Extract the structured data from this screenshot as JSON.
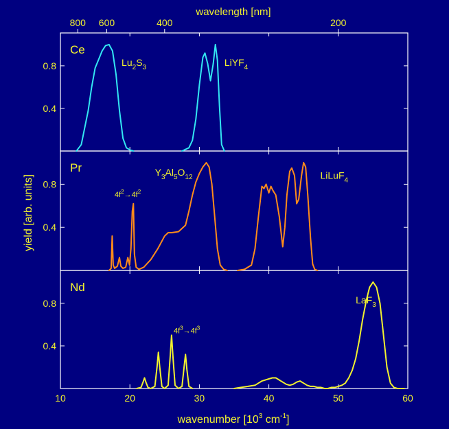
{
  "chart_data": {
    "type": "line",
    "xlabel": "wavenumber [10³ cm⁻¹]",
    "xlabel_parts": {
      "base": "wavenumber [10",
      "sup1": "3",
      "mid": " cm",
      "sup2": "-1",
      "end": "]"
    },
    "ylabel": "yield [arb. units]",
    "top_axis_label": "wavelength [nm]",
    "xlim": [
      10,
      60
    ],
    "xticks": [
      10,
      20,
      30,
      40,
      50,
      60
    ],
    "top_ticks_nm": [
      800,
      600,
      400,
      200
    ],
    "ylim": [
      0,
      1.0
    ],
    "yticks": [
      0.4,
      0.8
    ],
    "grid": false,
    "panels": [
      {
        "id": "ce",
        "label": "Ce",
        "color": "#33e6f2",
        "annotations": [
          {
            "parts": [
              [
                "Lu",
                "n"
              ],
              [
                "2",
                "sub"
              ],
              [
                "S",
                "n"
              ],
              [
                "3",
                "sub"
              ]
            ],
            "at": [
              18.8,
              0.8
            ]
          },
          {
            "parts": [
              [
                "LiYF",
                "n"
              ],
              [
                "4",
                "sub"
              ]
            ],
            "at": [
              33.6,
              0.8
            ]
          }
        ],
        "series": [
          {
            "x": [
              12.3,
              13.0,
              14.0,
              14.5,
              15.0,
              15.5,
              16.0,
              16.5,
              17.0,
              17.5,
              18.0,
              18.5,
              19.0,
              19.5,
              20.0,
              20.5
            ],
            "y": [
              0.0,
              0.06,
              0.38,
              0.6,
              0.78,
              0.86,
              0.94,
              0.99,
              1.0,
              0.94,
              0.72,
              0.38,
              0.12,
              0.03,
              0.01,
              0.0
            ]
          },
          {
            "x": [
              27.5,
              28.5,
              29.0,
              29.5,
              30.0,
              30.5,
              30.8,
              31.2,
              31.6,
              32.0,
              32.3,
              32.6,
              32.9,
              33.2,
              33.6
            ],
            "y": [
              0.0,
              0.03,
              0.1,
              0.3,
              0.62,
              0.88,
              0.92,
              0.82,
              0.66,
              0.82,
              1.0,
              0.85,
              0.42,
              0.06,
              0.0
            ]
          }
        ]
      },
      {
        "id": "pr",
        "label": "Pr",
        "color": "#ff8c1a",
        "annotations": [
          {
            "parts": [
              [
                "4f",
                "n"
              ],
              [
                "2",
                "sup"
              ],
              [
                "→4f",
                "n"
              ],
              [
                "2",
                "sup"
              ]
            ],
            "at": [
              17.8,
              0.68
            ]
          },
          {
            "parts": [
              [
                "Y",
                "n"
              ],
              [
                "3",
                "sub"
              ],
              [
                "Al",
                "n"
              ],
              [
                "5",
                "sub"
              ],
              [
                "O",
                "n"
              ],
              [
                "12",
                "sub"
              ]
            ],
            "at": [
              23.6,
              0.88
            ]
          },
          {
            "parts": [
              [
                "LiLuF",
                "n"
              ],
              [
                "4",
                "sub"
              ]
            ],
            "at": [
              47.4,
              0.85
            ]
          }
        ],
        "series": [
          {
            "x": [
              17.0,
              17.3,
              17.45,
              17.6,
              17.8,
              18.2,
              18.5,
              18.7,
              19.0,
              19.4,
              19.7,
              19.95,
              20.15,
              20.35,
              20.5,
              20.65,
              20.9,
              21.3,
              22.0,
              23.0,
              24.0,
              25.0,
              25.5,
              26.0,
              27.0,
              28.0,
              28.5,
              29.0,
              29.5,
              30.0,
              30.5,
              31.0,
              31.4,
              31.8,
              32.2,
              32.6,
              33.0,
              33.5,
              34.0
            ],
            "y": [
              0.0,
              0.02,
              0.32,
              0.05,
              0.02,
              0.04,
              0.12,
              0.04,
              0.02,
              0.03,
              0.12,
              0.05,
              0.2,
              0.55,
              0.62,
              0.15,
              0.03,
              0.01,
              0.03,
              0.1,
              0.2,
              0.32,
              0.35,
              0.35,
              0.36,
              0.42,
              0.55,
              0.7,
              0.82,
              0.9,
              0.96,
              1.0,
              0.96,
              0.8,
              0.5,
              0.2,
              0.05,
              0.01,
              0.0
            ]
          },
          {
            "x": [
              35.5,
              36.5,
              37.5,
              38.0,
              38.5,
              39.0,
              39.3,
              39.6,
              40.0,
              40.3,
              40.6,
              41.0,
              41.5,
              42.0,
              42.3,
              42.6,
              43.0,
              43.3,
              43.7,
              44.0,
              44.3,
              44.7,
              45.0,
              45.3,
              45.6,
              46.0,
              46.3,
              46.6,
              47.0
            ],
            "y": [
              0.0,
              0.01,
              0.05,
              0.2,
              0.5,
              0.78,
              0.76,
              0.8,
              0.72,
              0.78,
              0.74,
              0.7,
              0.5,
              0.22,
              0.4,
              0.7,
              0.92,
              0.95,
              0.88,
              0.62,
              0.66,
              0.88,
              1.0,
              0.96,
              0.7,
              0.3,
              0.06,
              0.01,
              0.0
            ]
          }
        ]
      },
      {
        "id": "nd",
        "label": "Nd",
        "color": "#f2f22e",
        "annotations": [
          {
            "parts": [
              [
                "4f",
                "n"
              ],
              [
                "3",
                "sup"
              ],
              [
                "→4f",
                "n"
              ],
              [
                "3",
                "sup"
              ]
            ],
            "at": [
              26.3,
              0.52
            ]
          },
          {
            "parts": [
              [
                "LaF",
                "n"
              ],
              [
                "3",
                "sub"
              ]
            ],
            "at": [
              52.5,
              0.8
            ]
          }
        ],
        "series": [
          {
            "x": [
              21.0,
              21.6,
              21.9,
              22.1,
              22.3,
              22.6,
              23.0,
              23.6,
              23.9,
              24.1,
              24.3,
              24.6,
              25.0,
              25.5,
              25.8,
              26.0,
              26.2,
              26.5,
              27.0,
              27.5,
              27.8,
              28.0,
              28.2,
              28.5,
              29.0
            ],
            "y": [
              0.0,
              0.01,
              0.06,
              0.1,
              0.06,
              0.01,
              0.0,
              0.02,
              0.2,
              0.34,
              0.2,
              0.02,
              0.0,
              0.03,
              0.3,
              0.5,
              0.3,
              0.03,
              0.0,
              0.02,
              0.2,
              0.32,
              0.18,
              0.02,
              0.0
            ]
          },
          {
            "x": [
              35.0,
              36.0,
              37.0,
              38.0,
              38.5,
              39.0,
              39.5,
              40.0,
              40.5,
              41.0,
              41.5,
              42.0,
              42.5,
              43.0,
              43.5,
              44.0,
              44.5,
              45.0,
              45.5,
              46.0,
              46.5,
              47.0,
              47.5,
              48.0,
              48.5,
              49.0,
              49.5,
              50.0,
              50.5,
              51.0,
              51.5,
              52.0,
              52.5,
              53.0,
              53.5,
              54.0,
              54.5,
              55.0,
              55.5,
              56.0,
              56.5,
              57.0,
              57.5,
              58.0,
              58.5,
              59.0,
              59.5
            ],
            "y": [
              0.0,
              0.01,
              0.02,
              0.03,
              0.05,
              0.07,
              0.08,
              0.09,
              0.1,
              0.1,
              0.08,
              0.06,
              0.04,
              0.03,
              0.04,
              0.06,
              0.07,
              0.05,
              0.03,
              0.02,
              0.02,
              0.01,
              0.01,
              0.0,
              0.0,
              0.01,
              0.01,
              0.02,
              0.03,
              0.05,
              0.1,
              0.17,
              0.28,
              0.45,
              0.65,
              0.82,
              0.95,
              1.0,
              0.95,
              0.8,
              0.5,
              0.2,
              0.05,
              0.01,
              0.0,
              0.0,
              0.0
            ]
          }
        ]
      }
    ]
  },
  "colors": {
    "background": "#000080",
    "axes_text": "#f2f22e",
    "frame": "#ffffff"
  }
}
